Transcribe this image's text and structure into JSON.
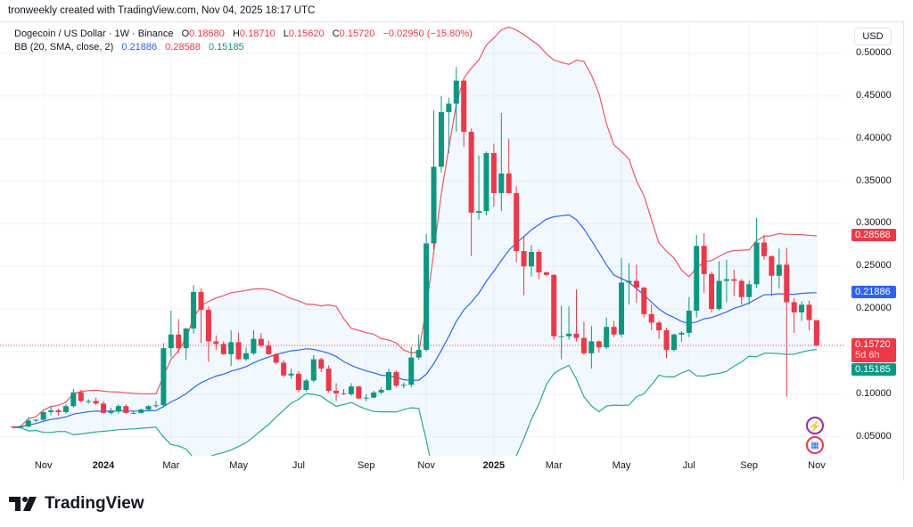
{
  "credit": "tronweekly created with TradingView.com, Nov 04, 2025 18:17 UTC",
  "legend": {
    "symbol": "Dogecoin / US Dollar · 1W · Binance",
    "o_label": "O",
    "o": "0.18680",
    "h_label": "H",
    "h": "0.18710",
    "l_label": "L",
    "l": "0.15620",
    "c_label": "C",
    "c": "0.15720",
    "change": "−0.02950 (−15.80%)",
    "bb_label": "BB (20, SMA, close, 2)",
    "bb_basis": "0.21886",
    "bb_upper": "0.28588",
    "bb_lower": "0.15185"
  },
  "currency_button": "USD",
  "price_tags": {
    "upper": "0.28588",
    "basis": "0.21886",
    "last": "0.15720",
    "countdown": "5d 6h",
    "lower": "0.15185"
  },
  "logo_text": "TradingView",
  "colors": {
    "up": "#089981",
    "down": "#f23645",
    "basis": "#2962ff",
    "upper": "#f7525f",
    "lower": "#22ab94"
  },
  "chart_data": {
    "type": "candlestick",
    "title": "Dogecoin / US Dollar · 1W · Binance",
    "ylabel": "USD",
    "ylim": [
      0,
      0.5
    ],
    "y_ticks": [
      "0.50000",
      "0.45000",
      "0.40000",
      "0.35000",
      "0.30000",
      "0.25000",
      "0.20000",
      "0.10000",
      "0.05000"
    ],
    "y_tick_values": [
      0.5,
      0.45,
      0.4,
      0.35,
      0.3,
      0.25,
      0.2,
      0.1,
      0.05
    ],
    "x_ticks": [
      {
        "label": "Nov",
        "index": 4,
        "bold": false
      },
      {
        "label": "2024",
        "index": 12,
        "bold": true
      },
      {
        "label": "Mar",
        "index": 21,
        "bold": false
      },
      {
        "label": "May",
        "index": 30,
        "bold": false
      },
      {
        "label": "Jul",
        "index": 38,
        "bold": false
      },
      {
        "label": "Sep",
        "index": 47,
        "bold": false
      },
      {
        "label": "Nov",
        "index": 55,
        "bold": false
      },
      {
        "label": "2025",
        "index": 64,
        "bold": true
      },
      {
        "label": "Mar",
        "index": 72,
        "bold": false
      },
      {
        "label": "May",
        "index": 81,
        "bold": false
      },
      {
        "label": "Jul",
        "index": 90,
        "bold": false
      },
      {
        "label": "Sep",
        "index": 98,
        "bold": false
      },
      {
        "label": "Nov",
        "index": 107,
        "bold": false
      }
    ],
    "bb": {
      "period": 20,
      "stddev": 2
    },
    "ohlc": [
      [
        0.062,
        0.063,
        0.059,
        0.061
      ],
      [
        0.061,
        0.063,
        0.06,
        0.062
      ],
      [
        0.062,
        0.073,
        0.061,
        0.069
      ],
      [
        0.069,
        0.071,
        0.067,
        0.07
      ],
      [
        0.07,
        0.08,
        0.068,
        0.079
      ],
      [
        0.079,
        0.086,
        0.075,
        0.081
      ],
      [
        0.081,
        0.083,
        0.075,
        0.079
      ],
      [
        0.079,
        0.088,
        0.077,
        0.086
      ],
      [
        0.086,
        0.106,
        0.084,
        0.102
      ],
      [
        0.102,
        0.105,
        0.09,
        0.092
      ],
      [
        0.092,
        0.094,
        0.089,
        0.092
      ],
      [
        0.092,
        0.096,
        0.087,
        0.089
      ],
      [
        0.089,
        0.092,
        0.077,
        0.078
      ],
      [
        0.078,
        0.084,
        0.076,
        0.08
      ],
      [
        0.08,
        0.088,
        0.077,
        0.086
      ],
      [
        0.086,
        0.088,
        0.077,
        0.078
      ],
      [
        0.078,
        0.081,
        0.077,
        0.078
      ],
      [
        0.078,
        0.083,
        0.077,
        0.082
      ],
      [
        0.082,
        0.087,
        0.08,
        0.086
      ],
      [
        0.086,
        0.092,
        0.084,
        0.087
      ],
      [
        0.087,
        0.16,
        0.086,
        0.154
      ],
      [
        0.154,
        0.198,
        0.143,
        0.17
      ],
      [
        0.17,
        0.188,
        0.148,
        0.154
      ],
      [
        0.154,
        0.178,
        0.14,
        0.177
      ],
      [
        0.177,
        0.228,
        0.171,
        0.22
      ],
      [
        0.22,
        0.224,
        0.16,
        0.199
      ],
      [
        0.199,
        0.203,
        0.138,
        0.162
      ],
      [
        0.162,
        0.169,
        0.152,
        0.159
      ],
      [
        0.159,
        0.162,
        0.146,
        0.147
      ],
      [
        0.147,
        0.175,
        0.133,
        0.161
      ],
      [
        0.161,
        0.172,
        0.14,
        0.141
      ],
      [
        0.141,
        0.155,
        0.139,
        0.148
      ],
      [
        0.148,
        0.175,
        0.146,
        0.165
      ],
      [
        0.165,
        0.172,
        0.155,
        0.157
      ],
      [
        0.157,
        0.163,
        0.146,
        0.147
      ],
      [
        0.147,
        0.148,
        0.135,
        0.137
      ],
      [
        0.137,
        0.14,
        0.12,
        0.122
      ],
      [
        0.122,
        0.13,
        0.118,
        0.124
      ],
      [
        0.124,
        0.127,
        0.102,
        0.105
      ],
      [
        0.105,
        0.118,
        0.103,
        0.116
      ],
      [
        0.116,
        0.146,
        0.114,
        0.141
      ],
      [
        0.141,
        0.143,
        0.126,
        0.13
      ],
      [
        0.13,
        0.134,
        0.102,
        0.104
      ],
      [
        0.104,
        0.113,
        0.092,
        0.101
      ],
      [
        0.101,
        0.106,
        0.099,
        0.1
      ],
      [
        0.1,
        0.113,
        0.098,
        0.109
      ],
      [
        0.109,
        0.11,
        0.094,
        0.095
      ],
      [
        0.095,
        0.1,
        0.092,
        0.096
      ],
      [
        0.096,
        0.104,
        0.095,
        0.102
      ],
      [
        0.102,
        0.108,
        0.1,
        0.105
      ],
      [
        0.105,
        0.13,
        0.104,
        0.126
      ],
      [
        0.126,
        0.128,
        0.108,
        0.11
      ],
      [
        0.11,
        0.114,
        0.107,
        0.111
      ],
      [
        0.111,
        0.156,
        0.108,
        0.143
      ],
      [
        0.143,
        0.17,
        0.14,
        0.152
      ],
      [
        0.152,
        0.288,
        0.15,
        0.277
      ],
      [
        0.277,
        0.433,
        0.27,
        0.367
      ],
      [
        0.367,
        0.45,
        0.36,
        0.431
      ],
      [
        0.431,
        0.448,
        0.383,
        0.441
      ],
      [
        0.441,
        0.484,
        0.408,
        0.468
      ],
      [
        0.468,
        0.469,
        0.39,
        0.408
      ],
      [
        0.408,
        0.412,
        0.262,
        0.313
      ],
      [
        0.313,
        0.38,
        0.305,
        0.315
      ],
      [
        0.315,
        0.385,
        0.31,
        0.383
      ],
      [
        0.383,
        0.394,
        0.32,
        0.336
      ],
      [
        0.336,
        0.43,
        0.315,
        0.359
      ],
      [
        0.359,
        0.4,
        0.336,
        0.336
      ],
      [
        0.336,
        0.344,
        0.255,
        0.268
      ],
      [
        0.268,
        0.286,
        0.216,
        0.25
      ],
      [
        0.25,
        0.275,
        0.238,
        0.267
      ],
      [
        0.267,
        0.27,
        0.235,
        0.243
      ],
      [
        0.243,
        0.244,
        0.238,
        0.24
      ],
      [
        0.24,
        0.241,
        0.164,
        0.168
      ],
      [
        0.168,
        0.204,
        0.141,
        0.168
      ],
      [
        0.168,
        0.203,
        0.164,
        0.171
      ],
      [
        0.171,
        0.223,
        0.162,
        0.166
      ],
      [
        0.166,
        0.185,
        0.146,
        0.148
      ],
      [
        0.148,
        0.18,
        0.13,
        0.162
      ],
      [
        0.162,
        0.163,
        0.149,
        0.155
      ],
      [
        0.155,
        0.19,
        0.153,
        0.179
      ],
      [
        0.179,
        0.186,
        0.167,
        0.17
      ],
      [
        0.17,
        0.26,
        0.167,
        0.231
      ],
      [
        0.231,
        0.254,
        0.205,
        0.233
      ],
      [
        0.233,
        0.252,
        0.207,
        0.225
      ],
      [
        0.225,
        0.226,
        0.19,
        0.194
      ],
      [
        0.194,
        0.205,
        0.175,
        0.184
      ],
      [
        0.184,
        0.186,
        0.165,
        0.175
      ],
      [
        0.175,
        0.178,
        0.142,
        0.152
      ],
      [
        0.152,
        0.171,
        0.15,
        0.17
      ],
      [
        0.17,
        0.174,
        0.161,
        0.172
      ],
      [
        0.172,
        0.214,
        0.167,
        0.198
      ],
      [
        0.198,
        0.287,
        0.19,
        0.274
      ],
      [
        0.274,
        0.289,
        0.219,
        0.241
      ],
      [
        0.241,
        0.244,
        0.196,
        0.2
      ],
      [
        0.2,
        0.256,
        0.198,
        0.233
      ],
      [
        0.233,
        0.258,
        0.208,
        0.235
      ],
      [
        0.235,
        0.246,
        0.215,
        0.233
      ],
      [
        0.233,
        0.235,
        0.205,
        0.214
      ],
      [
        0.214,
        0.233,
        0.205,
        0.229
      ],
      [
        0.229,
        0.307,
        0.225,
        0.278
      ],
      [
        0.278,
        0.287,
        0.258,
        0.262
      ],
      [
        0.262,
        0.263,
        0.215,
        0.239
      ],
      [
        0.239,
        0.271,
        0.224,
        0.252
      ],
      [
        0.252,
        0.272,
        0.097,
        0.208
      ],
      [
        0.208,
        0.213,
        0.172,
        0.196
      ],
      [
        0.196,
        0.209,
        0.186,
        0.205
      ],
      [
        0.205,
        0.21,
        0.175,
        0.187
      ],
      [
        0.1868,
        0.1871,
        0.1562,
        0.1572
      ]
    ],
    "last_price": 0.1572
  }
}
